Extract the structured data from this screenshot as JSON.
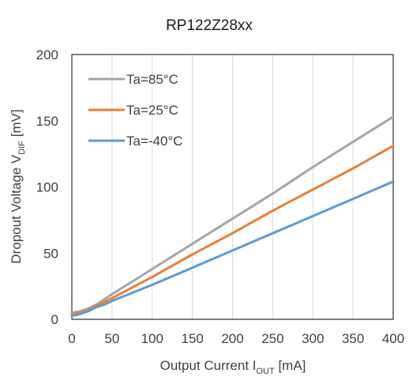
{
  "chart_data": {
    "type": "line",
    "title": "RP122Z28xx",
    "xlabel": {
      "main": "Output Current I",
      "sub": "OUT",
      "unit": " [mA]"
    },
    "ylabel": {
      "main": "Dropout Voltage V",
      "sub": "DIF",
      "unit": " [mV]"
    },
    "xlim": [
      0,
      400
    ],
    "ylim": [
      0,
      200
    ],
    "x_ticks": [
      "0",
      "50",
      "100",
      "150",
      "200",
      "250",
      "300",
      "350",
      "400"
    ],
    "y_ticks": [
      "0",
      "50",
      "100",
      "150",
      "200"
    ],
    "grid": "vertical",
    "legend_position": "top-left",
    "series": [
      {
        "name": "Ta=85°C",
        "color": "#A5A5A5",
        "x": [
          0,
          10,
          20,
          30,
          40,
          50,
          100,
          150,
          200,
          250,
          300,
          350,
          400
        ],
        "y": [
          5,
          6,
          8,
          11,
          15,
          19,
          38,
          57,
          76,
          95,
          115,
          134,
          153
        ]
      },
      {
        "name": "Ta=25°C",
        "color": "#ED7D31",
        "x": [
          0,
          10,
          20,
          30,
          40,
          50,
          100,
          150,
          200,
          250,
          300,
          350,
          400
        ],
        "y": [
          4,
          5,
          7,
          10,
          13,
          16,
          32,
          49,
          65,
          82,
          98,
          114,
          131
        ]
      },
      {
        "name": "Ta=-40°C",
        "color": "#5B9BD5",
        "x": [
          0,
          5,
          10,
          20,
          30,
          40,
          50,
          100,
          150,
          200,
          250,
          300,
          350,
          400
        ],
        "y": [
          3,
          3,
          4,
          6,
          9,
          11,
          14,
          26,
          39,
          52,
          65,
          78,
          91,
          104
        ]
      }
    ]
  }
}
